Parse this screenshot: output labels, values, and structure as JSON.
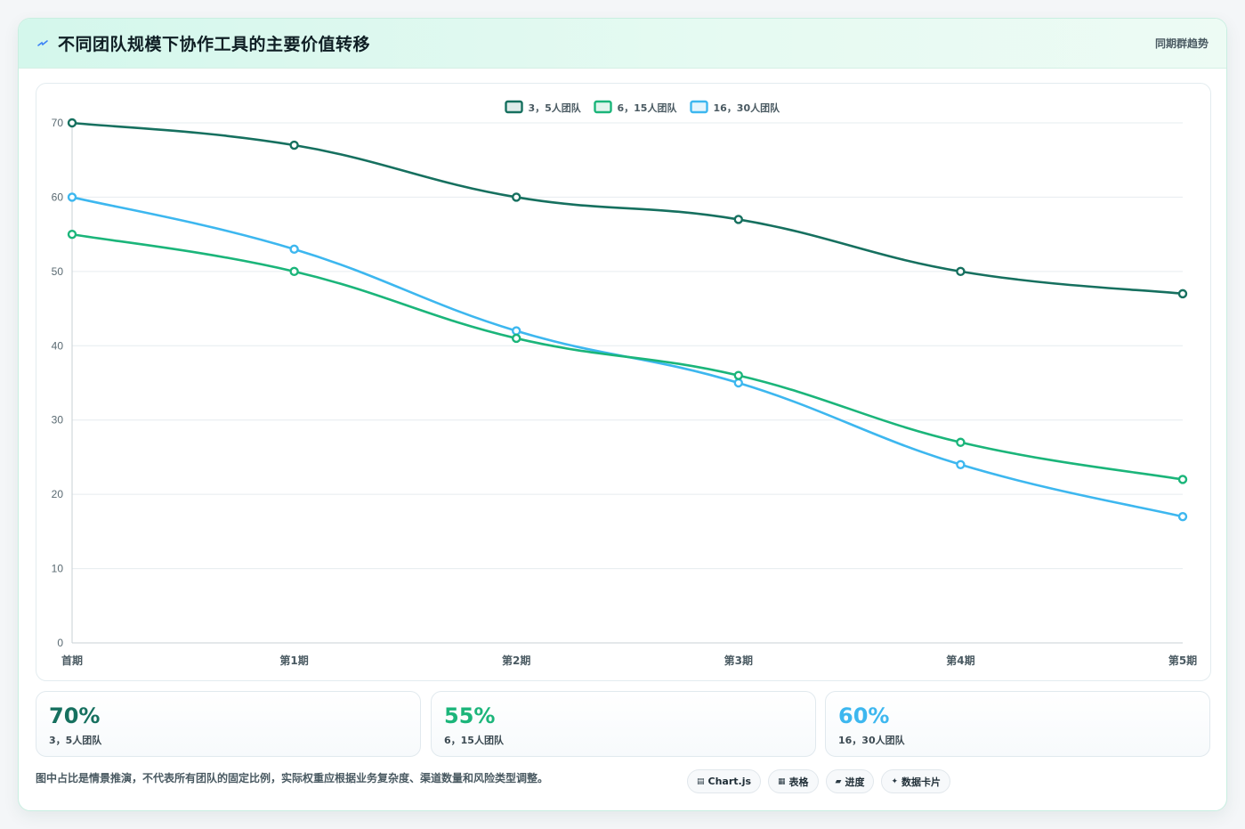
{
  "header": {
    "title": "不同团队规模下协作工具的主要价值转移",
    "subtitle": "同期群趋势"
  },
  "chart_data": {
    "type": "line",
    "categories": [
      "首期",
      "第1期",
      "第2期",
      "第3期",
      "第4期",
      "第5期"
    ],
    "series": [
      {
        "name": "3，5人团队",
        "color": "#16705f",
        "values": [
          70,
          67,
          60,
          57,
          50,
          47
        ]
      },
      {
        "name": "6，15人团队",
        "color": "#1bb57a",
        "values": [
          55,
          50,
          41,
          36,
          27,
          22
        ]
      },
      {
        "name": "16，30人团队",
        "color": "#3db7ef",
        "values": [
          60,
          53,
          42,
          35,
          24,
          17
        ]
      }
    ],
    "ylim": [
      0,
      70
    ],
    "yticks": [
      0,
      10,
      20,
      30,
      40,
      50,
      60,
      70
    ],
    "grid": true,
    "legend": "top-center"
  },
  "stats": [
    {
      "value": "70%",
      "label": "3，5人团队",
      "color": "#16705f"
    },
    {
      "value": "55%",
      "label": "6，15人团队",
      "color": "#1bb57a"
    },
    {
      "value": "60%",
      "label": "16，30人团队",
      "color": "#3db7ef"
    }
  ],
  "footnote": "图中占比是情景推演，不代表所有团队的固定比例，实际权重应根据业务复杂度、渠道数量和风险类型调整。",
  "chips": [
    {
      "icon": "▤",
      "label": "Chart.js"
    },
    {
      "icon": "▦",
      "label": "表格"
    },
    {
      "icon": "▰",
      "label": "进度"
    },
    {
      "icon": "✦",
      "label": "数据卡片"
    }
  ]
}
